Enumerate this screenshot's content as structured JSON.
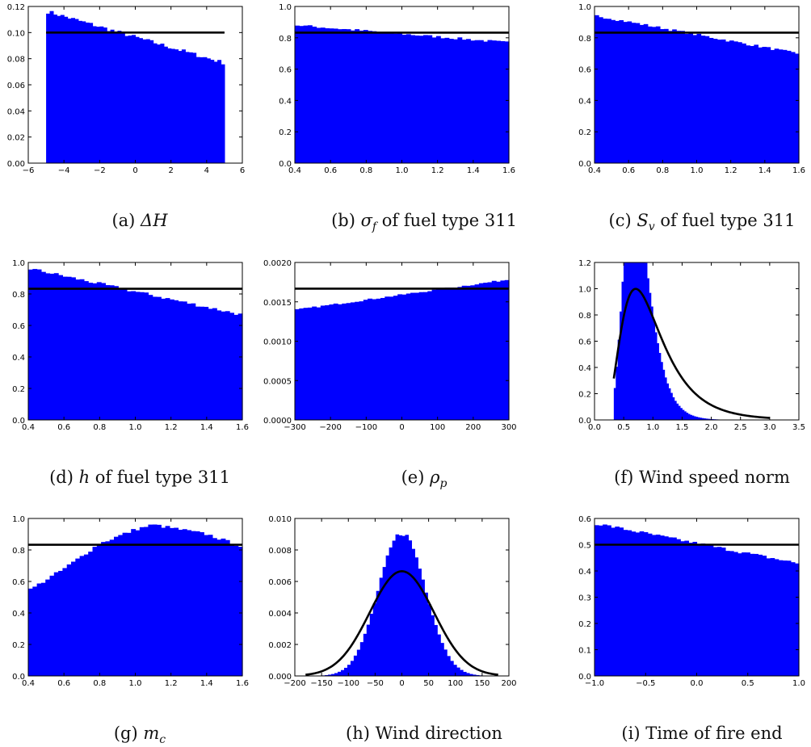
{
  "chart_data": [
    {
      "type": "bar",
      "caption": {
        "prefix": "(a) ",
        "sym": "ΔH",
        "sub": "",
        "suffix": ""
      },
      "xlim": [
        -6,
        6
      ],
      "ylim": [
        0,
        0.12
      ],
      "xticks": [
        -6,
        -4,
        -2,
        0,
        2,
        4,
        6
      ],
      "xtick_labels": [
        "−6",
        "−4",
        "−2",
        "0",
        "2",
        "4",
        "6"
      ],
      "yticks": [
        0,
        0.02,
        0.04,
        0.06,
        0.08,
        0.1,
        0.12
      ],
      "ytick_labels": [
        "0.00",
        "0.02",
        "0.04",
        "0.06",
        "0.08",
        "0.10",
        "0.12"
      ],
      "hist": {
        "range": [
          -5,
          5
        ],
        "bins": 50,
        "start": 0.116,
        "end": 0.077,
        "jitter": 0.0015
      },
      "reference_line": {
        "kind": "flat",
        "range": [
          -5,
          5
        ],
        "value": 0.1
      },
      "colors": {
        "bars": "#0000ff",
        "line": "#000000"
      }
    },
    {
      "type": "bar",
      "caption": {
        "prefix": "(b) ",
        "sym": "σ",
        "sub": "f",
        "suffix": " of fuel type 311"
      },
      "xlim": [
        0.4,
        1.6
      ],
      "ylim": [
        0,
        1.0
      ],
      "xticks": [
        0.4,
        0.6,
        0.8,
        1.0,
        1.2,
        1.4,
        1.6
      ],
      "xtick_labels": [
        "0.4",
        "0.6",
        "0.8",
        "1.0",
        "1.2",
        "1.4",
        "1.6"
      ],
      "yticks": [
        0,
        0.2,
        0.4,
        0.6,
        0.8,
        1.0
      ],
      "ytick_labels": [
        "0.0",
        "0.2",
        "0.4",
        "0.6",
        "0.8",
        "1.0"
      ],
      "hist": {
        "range": [
          0.4,
          1.6
        ],
        "bins": 50,
        "start": 0.88,
        "end": 0.77,
        "jitter": 0.008
      },
      "reference_line": {
        "kind": "flat",
        "range": [
          0.4,
          1.6
        ],
        "value": 0.833
      },
      "colors": {
        "bars": "#0000ff",
        "line": "#000000"
      }
    },
    {
      "type": "bar",
      "caption": {
        "prefix": "(c) ",
        "sym": "S",
        "sub": "v",
        "suffix": " of fuel type 311"
      },
      "xlim": [
        0.4,
        1.6
      ],
      "ylim": [
        0,
        1.0
      ],
      "xticks": [
        0.4,
        0.6,
        0.8,
        1.0,
        1.2,
        1.4,
        1.6
      ],
      "xtick_labels": [
        "0.4",
        "0.6",
        "0.8",
        "1.0",
        "1.2",
        "1.4",
        "1.6"
      ],
      "yticks": [
        0,
        0.2,
        0.4,
        0.6,
        0.8,
        1.0
      ],
      "ytick_labels": [
        "0.0",
        "0.2",
        "0.4",
        "0.6",
        "0.8",
        "1.0"
      ],
      "hist": {
        "range": [
          0.4,
          1.6
        ],
        "bins": 50,
        "start": 0.94,
        "end": 0.7,
        "jitter": 0.008
      },
      "reference_line": {
        "kind": "flat",
        "range": [
          0.4,
          1.6
        ],
        "value": 0.833
      },
      "colors": {
        "bars": "#0000ff",
        "line": "#000000"
      }
    },
    {
      "type": "bar",
      "caption": {
        "prefix": "(d) ",
        "sym": "h",
        "sub": "",
        "suffix": " of fuel type 311"
      },
      "xlim": [
        0.4,
        1.6
      ],
      "ylim": [
        0,
        1.0
      ],
      "xticks": [
        0.4,
        0.6,
        0.8,
        1.0,
        1.2,
        1.4,
        1.6
      ],
      "xtick_labels": [
        "0.4",
        "0.6",
        "0.8",
        "1.0",
        "1.2",
        "1.4",
        "1.6"
      ],
      "yticks": [
        0,
        0.2,
        0.4,
        0.6,
        0.8,
        1.0
      ],
      "ytick_labels": [
        "0.0",
        "0.2",
        "0.4",
        "0.6",
        "0.8",
        "1.0"
      ],
      "hist": {
        "range": [
          0.4,
          1.6
        ],
        "bins": 50,
        "start": 0.96,
        "end": 0.67,
        "jitter": 0.01
      },
      "reference_line": {
        "kind": "flat",
        "range": [
          0.4,
          1.6
        ],
        "value": 0.833
      },
      "colors": {
        "bars": "#0000ff",
        "line": "#000000"
      }
    },
    {
      "type": "bar",
      "caption": {
        "prefix": "(e) ",
        "sym": "ρ",
        "sub": "p",
        "suffix": ""
      },
      "xlim": [
        -300,
        300
      ],
      "ylim": [
        0,
        0.002
      ],
      "xticks": [
        -300,
        -200,
        -100,
        0,
        100,
        200,
        300
      ],
      "xtick_labels": [
        "−300",
        "−200",
        "−100",
        "0",
        "100",
        "200",
        "300"
      ],
      "yticks": [
        0,
        0.0005,
        0.001,
        0.0015,
        0.002
      ],
      "ytick_labels": [
        "0.0000",
        "0.0005",
        "0.0010",
        "0.0015",
        "0.0020"
      ],
      "hist": {
        "range": [
          -300,
          300
        ],
        "bins": 50,
        "start": 0.0014,
        "end": 0.00178,
        "jitter": 1e-05
      },
      "reference_line": {
        "kind": "flat",
        "range": [
          -300,
          300
        ],
        "value": 0.001667
      },
      "colors": {
        "bars": "#0000ff",
        "line": "#000000"
      }
    },
    {
      "type": "bar",
      "caption": {
        "prefix": "(f) ",
        "sym": "",
        "sub": "",
        "suffix": "Wind speed norm"
      },
      "xlim": [
        0,
        3.5
      ],
      "ylim": [
        0,
        1.2
      ],
      "xticks": [
        0,
        0.5,
        1.0,
        1.5,
        2.0,
        2.5,
        3.0,
        3.5
      ],
      "xtick_labels": [
        "0.0",
        "0.5",
        "1.0",
        "1.5",
        "2.0",
        "2.5",
        "3.0",
        "3.5"
      ],
      "yticks": [
        0,
        0.2,
        0.4,
        0.6,
        0.8,
        1.0,
        1.2
      ],
      "ytick_labels": [
        "0.0",
        "0.2",
        "0.4",
        "0.6",
        "0.8",
        "1.0",
        "1.2"
      ],
      "hist": {
        "range": [
          0.33,
          3.0
        ],
        "bins": 80,
        "shape": "lognormal",
        "mu": -0.3,
        "sigma": 0.33
      },
      "reference_line": {
        "kind": "lognormal",
        "range": [
          0.33,
          3.0
        ],
        "mu": -0.1,
        "sigma": 0.5
      },
      "colors": {
        "bars": "#0000ff",
        "line": "#000000"
      }
    },
    {
      "type": "bar",
      "caption": {
        "prefix": "(g) ",
        "sym": "m",
        "sub": "c",
        "suffix": ""
      },
      "xlim": [
        0.4,
        1.6
      ],
      "ylim": [
        0,
        1.0
      ],
      "xticks": [
        0.4,
        0.6,
        0.8,
        1.0,
        1.2,
        1.4,
        1.6
      ],
      "xtick_labels": [
        "0.4",
        "0.6",
        "0.8",
        "1.0",
        "1.2",
        "1.4",
        "1.6"
      ],
      "yticks": [
        0,
        0.2,
        0.4,
        0.6,
        0.8,
        1.0
      ],
      "ytick_labels": [
        "0.0",
        "0.2",
        "0.4",
        "0.6",
        "0.8",
        "1.0"
      ],
      "hist": {
        "range": [
          0.4,
          1.6
        ],
        "bins": 50,
        "shape": "hump",
        "points": [
          [
            0.4,
            0.54
          ],
          [
            0.6,
            0.68
          ],
          [
            0.8,
            0.84
          ],
          [
            1.0,
            0.93
          ],
          [
            1.1,
            0.96
          ],
          [
            1.2,
            0.94
          ],
          [
            1.4,
            0.9
          ],
          [
            1.6,
            0.82
          ]
        ],
        "jitter": 0.01
      },
      "reference_line": {
        "kind": "flat",
        "range": [
          0.4,
          1.6
        ],
        "value": 0.833
      },
      "colors": {
        "bars": "#0000ff",
        "line": "#000000"
      }
    },
    {
      "type": "bar",
      "caption": {
        "prefix": "(h) ",
        "sym": "",
        "sub": "",
        "suffix": "Wind direction"
      },
      "xlim": [
        -200,
        200
      ],
      "ylim": [
        0,
        0.01
      ],
      "xticks": [
        -200,
        -150,
        -100,
        -50,
        0,
        50,
        100,
        150,
        200
      ],
      "xtick_labels": [
        "−200",
        "−150",
        "−100",
        "−50",
        "0",
        "50",
        "100",
        "150",
        "200"
      ],
      "yticks": [
        0,
        0.002,
        0.004,
        0.006,
        0.008,
        0.01
      ],
      "ytick_labels": [
        "0.000",
        "0.002",
        "0.004",
        "0.006",
        "0.008",
        "0.010"
      ],
      "hist": {
        "range": [
          -180,
          180
        ],
        "bins": 60,
        "shape": "normal",
        "mu": 0,
        "sigma": 44
      },
      "reference_line": {
        "kind": "normal",
        "range": [
          -180,
          180
        ],
        "mu": 0,
        "sigma": 60
      },
      "colors": {
        "bars": "#0000ff",
        "line": "#000000"
      }
    },
    {
      "type": "bar",
      "caption": {
        "prefix": "(i) ",
        "sym": "",
        "sub": "",
        "suffix": "Time of fire end"
      },
      "xlim": [
        -1.0,
        1.0
      ],
      "ylim": [
        0,
        0.6
      ],
      "xticks": [
        -1.0,
        -0.5,
        0.0,
        0.5,
        1.0
      ],
      "xtick_labels": [
        "−1.0",
        "−0.5",
        "0.0",
        "0.5",
        "1.0"
      ],
      "yticks": [
        0,
        0.1,
        0.2,
        0.3,
        0.4,
        0.5,
        0.6
      ],
      "ytick_labels": [
        "0.0",
        "0.1",
        "0.2",
        "0.3",
        "0.4",
        "0.5",
        "0.6"
      ],
      "hist": {
        "range": [
          -1.0,
          1.0
        ],
        "bins": 50,
        "start": 0.58,
        "end": 0.43,
        "jitter": 0.006
      },
      "reference_line": {
        "kind": "flat",
        "range": [
          -1.0,
          1.0
        ],
        "value": 0.5
      },
      "colors": {
        "bars": "#0000ff",
        "line": "#000000"
      }
    }
  ]
}
